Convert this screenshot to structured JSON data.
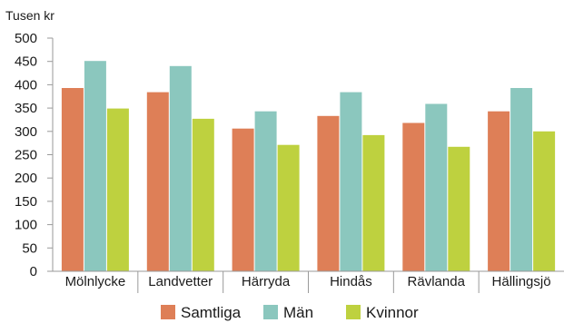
{
  "chart_data": {
    "type": "bar",
    "ylabel": "Tusen kr",
    "ylim": [
      0,
      500
    ],
    "yticks": [
      0,
      50,
      100,
      150,
      200,
      250,
      300,
      350,
      400,
      450,
      500
    ],
    "grid": false,
    "legend_position": "bottom",
    "categories": [
      "Mölnlycke",
      "Landvetter",
      "Härryda",
      "Hindås",
      "Rävlanda",
      "Hällingsjö"
    ],
    "series": [
      {
        "name": "Samtliga",
        "color": "#de7f57",
        "values": [
          393,
          384,
          306,
          333,
          318,
          343
        ]
      },
      {
        "name": "Män",
        "color": "#8bc7be",
        "values": [
          451,
          440,
          343,
          384,
          359,
          393
        ]
      },
      {
        "name": "Kvinnor",
        "color": "#bed13f",
        "values": [
          349,
          327,
          271,
          292,
          267,
          300
        ]
      }
    ]
  }
}
